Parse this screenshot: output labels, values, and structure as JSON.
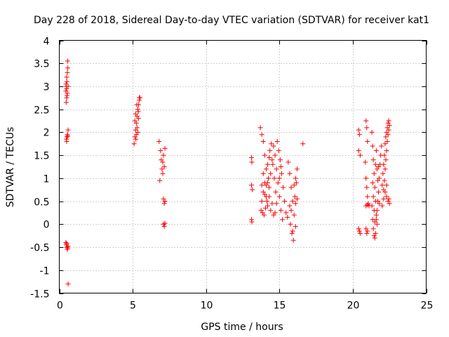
{
  "chart_data": {
    "type": "scatter",
    "title": "Day 228 of 2018, Sidereal Day-to-day VTEC variation (SDTVAR) for receiver kat1",
    "xlabel": "GPS time / hours",
    "ylabel": "SDTVAR / TECUs",
    "xlim": [
      0,
      25
    ],
    "ylim": [
      -1.5,
      4
    ],
    "xticks": [
      0,
      5,
      10,
      15,
      20,
      25
    ],
    "xtick_labels": [
      "0",
      "5",
      "10",
      "15",
      "20",
      "25"
    ],
    "yticks": [
      -1.5,
      -1,
      -0.5,
      0,
      0.5,
      1,
      1.5,
      2,
      2.5,
      3,
      3.5,
      4
    ],
    "ytick_labels": [
      "-1.5",
      "-1",
      "-0.5",
      "0",
      "0.5",
      "1",
      "1.5",
      "2",
      "2.5",
      "3",
      "3.5",
      "4"
    ],
    "grid": true,
    "marker": "+",
    "marker_color": "#ff0000",
    "series": [
      {
        "name": "SDTVAR",
        "points": [
          [
            0.45,
            2.9
          ],
          [
            0.48,
            3.0
          ],
          [
            0.5,
            2.95
          ],
          [
            0.52,
            3.1
          ],
          [
            0.55,
            3.3
          ],
          [
            0.57,
            3.55
          ],
          [
            0.5,
            3.2
          ],
          [
            0.53,
            2.8
          ],
          [
            0.47,
            2.65
          ],
          [
            0.55,
            2.85
          ],
          [
            0.6,
            3.0
          ],
          [
            0.58,
            3.4
          ],
          [
            0.5,
            2.75
          ],
          [
            0.46,
            3.05
          ],
          [
            0.48,
            1.85
          ],
          [
            0.52,
            1.9
          ],
          [
            0.55,
            1.95
          ],
          [
            0.6,
            2.05
          ],
          [
            0.5,
            1.8
          ],
          [
            0.58,
            1.92
          ],
          [
            0.45,
            -0.4
          ],
          [
            0.48,
            -0.45
          ],
          [
            0.52,
            -0.5
          ],
          [
            0.55,
            -0.55
          ],
          [
            0.6,
            -0.48
          ],
          [
            0.5,
            -0.42
          ],
          [
            0.57,
            -0.52
          ],
          [
            0.6,
            -1.3
          ],
          [
            5.1,
            1.75
          ],
          [
            5.15,
            1.9
          ],
          [
            5.2,
            2.05
          ],
          [
            5.25,
            2.2
          ],
          [
            5.3,
            2.35
          ],
          [
            5.35,
            2.5
          ],
          [
            5.4,
            2.6
          ],
          [
            5.45,
            2.75
          ],
          [
            5.2,
            2.4
          ],
          [
            5.3,
            2.1
          ],
          [
            5.35,
            2.0
          ],
          [
            5.4,
            2.3
          ],
          [
            5.25,
            1.95
          ],
          [
            5.45,
            2.7
          ],
          [
            5.15,
            2.25
          ],
          [
            5.38,
            2.45
          ],
          [
            5.5,
            2.75
          ],
          [
            5.28,
            2.6
          ],
          [
            5.22,
            1.85
          ],
          [
            6.8,
            1.8
          ],
          [
            6.9,
            1.6
          ],
          [
            6.95,
            1.4
          ],
          [
            7.0,
            1.2
          ],
          [
            7.05,
            1.35
          ],
          [
            7.1,
            1.5
          ],
          [
            7.2,
            1.65
          ],
          [
            7.15,
            1.25
          ],
          [
            6.85,
            0.95
          ],
          [
            7.05,
            1.1
          ],
          [
            7.1,
            0.55
          ],
          [
            7.15,
            0.45
          ],
          [
            7.2,
            0.5
          ],
          [
            7.1,
            0.0
          ],
          [
            7.15,
            -0.05
          ],
          [
            7.2,
            0.02
          ],
          [
            13.1,
            1.45
          ],
          [
            13.12,
            1.35
          ],
          [
            13.1,
            0.85
          ],
          [
            13.15,
            0.75
          ],
          [
            13.1,
            0.1
          ],
          [
            13.12,
            0.05
          ],
          [
            13.7,
            2.1
          ],
          [
            13.8,
            1.95
          ],
          [
            13.9,
            1.8
          ],
          [
            14.0,
            1.5
          ],
          [
            14.1,
            1.2
          ],
          [
            14.2,
            0.9
          ],
          [
            14.3,
            0.6
          ],
          [
            14.4,
            0.3
          ],
          [
            13.8,
            0.5
          ],
          [
            13.9,
            0.7
          ],
          [
            14.0,
            0.9
          ],
          [
            14.1,
            0.6
          ],
          [
            14.2,
            0.4
          ],
          [
            14.3,
            0.8
          ],
          [
            14.4,
            1.1
          ],
          [
            14.5,
            1.4
          ],
          [
            14.6,
            1.7
          ],
          [
            14.7,
            1.5
          ],
          [
            14.8,
            1.2
          ],
          [
            14.9,
            0.9
          ],
          [
            15.0,
            0.6
          ],
          [
            15.1,
            0.3
          ],
          [
            15.2,
            0.1
          ],
          [
            13.75,
            0.3
          ],
          [
            13.85,
            0.25
          ],
          [
            13.95,
            0.2
          ],
          [
            14.05,
            0.35
          ],
          [
            14.15,
            0.5
          ],
          [
            14.25,
            1.0
          ],
          [
            14.35,
            1.6
          ],
          [
            14.45,
            1.75
          ],
          [
            14.55,
            1.3
          ],
          [
            14.65,
            1.0
          ],
          [
            14.75,
            0.7
          ],
          [
            14.85,
            1.8
          ],
          [
            14.95,
            1.6
          ],
          [
            15.05,
            1.4
          ],
          [
            15.15,
            1.1
          ],
          [
            15.25,
            0.8
          ],
          [
            15.35,
            0.5
          ],
          [
            15.45,
            0.25
          ],
          [
            15.55,
            0.15
          ],
          [
            14.6,
            0.2
          ],
          [
            14.7,
            0.25
          ],
          [
            14.5,
            0.45
          ],
          [
            13.9,
            1.1
          ],
          [
            14.0,
            0.65
          ],
          [
            14.1,
            0.85
          ],
          [
            14.2,
            1.3
          ],
          [
            14.8,
            0.45
          ],
          [
            15.0,
            1.0
          ],
          [
            15.1,
            1.25
          ],
          [
            13.8,
            0.85
          ],
          [
            14.3,
            1.45
          ],
          [
            15.6,
            1.35
          ],
          [
            15.7,
            1.1
          ],
          [
            15.8,
            0.8
          ],
          [
            15.9,
            0.5
          ],
          [
            16.0,
            0.2
          ],
          [
            16.1,
            -0.05
          ],
          [
            15.75,
            0.0
          ],
          [
            15.85,
            -0.2
          ],
          [
            15.95,
            -0.35
          ],
          [
            16.05,
            0.6
          ],
          [
            16.15,
            0.9
          ],
          [
            16.2,
            1.2
          ],
          [
            16.1,
            1.0
          ],
          [
            15.8,
            0.3
          ],
          [
            15.9,
            -0.15
          ],
          [
            16.0,
            0.85
          ],
          [
            15.7,
            0.4
          ],
          [
            16.2,
            0.55
          ],
          [
            16.1,
            0.45
          ],
          [
            16.6,
            1.75
          ],
          [
            20.4,
            2.05
          ],
          [
            20.45,
            1.95
          ],
          [
            20.4,
            1.6
          ],
          [
            20.5,
            1.5
          ],
          [
            20.4,
            -0.1
          ],
          [
            20.45,
            -0.15
          ],
          [
            20.5,
            -0.2
          ],
          [
            20.9,
            2.25
          ],
          [
            20.95,
            2.1
          ],
          [
            21.0,
            1.8
          ],
          [
            20.85,
            1.35
          ],
          [
            20.9,
            1.0
          ],
          [
            20.95,
            0.8
          ],
          [
            21.0,
            0.6
          ],
          [
            21.05,
            0.45
          ],
          [
            20.9,
            0.4
          ],
          [
            21.0,
            0.42
          ],
          [
            21.1,
            0.4
          ],
          [
            20.9,
            -0.1
          ],
          [
            20.95,
            -0.2
          ],
          [
            21.0,
            -0.15
          ],
          [
            21.3,
            2.0
          ],
          [
            21.35,
            1.7
          ],
          [
            21.4,
            1.4
          ],
          [
            21.45,
            1.1
          ],
          [
            21.5,
            0.8
          ],
          [
            21.55,
            0.5
          ],
          [
            21.6,
            0.2
          ],
          [
            21.65,
            0.0
          ],
          [
            21.3,
            0.4
          ],
          [
            21.35,
            0.1
          ],
          [
            21.4,
            -0.1
          ],
          [
            21.45,
            -0.25
          ],
          [
            21.5,
            -0.3
          ],
          [
            21.55,
            -0.2
          ],
          [
            21.6,
            0.1
          ],
          [
            21.65,
            0.3
          ],
          [
            21.7,
            0.5
          ],
          [
            21.75,
            0.7
          ],
          [
            21.8,
            1.0
          ],
          [
            21.85,
            1.3
          ],
          [
            21.9,
            1.5
          ],
          [
            21.95,
            1.7
          ],
          [
            21.35,
            0.9
          ],
          [
            21.4,
            0.6
          ],
          [
            21.45,
            0.3
          ],
          [
            21.5,
            0.05
          ],
          [
            21.55,
            1.3
          ],
          [
            21.6,
            1.6
          ],
          [
            21.65,
            1.2
          ],
          [
            21.7,
            0.95
          ],
          [
            21.75,
            1.25
          ],
          [
            21.8,
            0.45
          ],
          [
            22.0,
            0.4
          ],
          [
            22.1,
            0.55
          ],
          [
            22.2,
            0.7
          ],
          [
            22.3,
            0.6
          ],
          [
            22.4,
            0.5
          ],
          [
            22.5,
            0.45
          ],
          [
            22.0,
            0.85
          ],
          [
            22.05,
            1.1
          ],
          [
            22.1,
            1.3
          ],
          [
            22.15,
            1.5
          ],
          [
            22.2,
            1.75
          ],
          [
            22.25,
            1.9
          ],
          [
            22.3,
            2.0
          ],
          [
            22.35,
            2.1
          ],
          [
            22.4,
            2.2
          ],
          [
            22.45,
            2.25
          ],
          [
            22.5,
            2.15
          ],
          [
            22.2,
            1.2
          ],
          [
            22.25,
            1.4
          ],
          [
            22.3,
            1.6
          ],
          [
            22.35,
            1.8
          ],
          [
            22.4,
            1.95
          ],
          [
            22.45,
            2.05
          ],
          [
            22.15,
            0.95
          ],
          [
            22.1,
            0.75
          ],
          [
            22.3,
            0.85
          ],
          [
            22.45,
            0.55
          ]
        ]
      }
    ]
  }
}
